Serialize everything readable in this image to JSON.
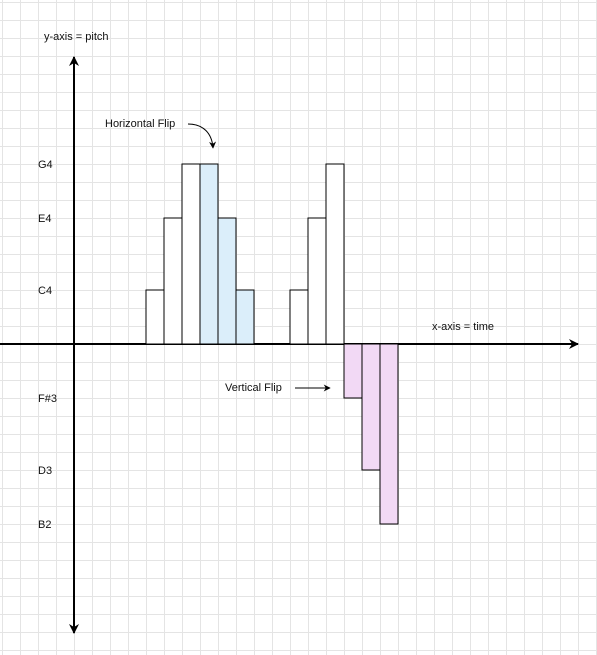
{
  "axes": {
    "y_label": "y-axis = pitch",
    "x_label": "x-axis = time",
    "pitch_labels": [
      "G4",
      "E4",
      "C4",
      "F#3",
      "D3",
      "B2"
    ]
  },
  "annotations": {
    "horizontal_flip": "Horizontal Flip",
    "vertical_flip": "Vertical Flip"
  },
  "colors": {
    "horizontal_flip_fill": "#dbeefa",
    "vertical_flip_fill": "#f2d9f5",
    "outline": "#000000"
  },
  "notes": {
    "original": [
      "C4",
      "E4",
      "G4"
    ],
    "horizontal_flip": [
      "G4",
      "E4",
      "C4"
    ],
    "second_motif": [
      "C4",
      "E4",
      "G4"
    ],
    "vertical_flip": [
      "F#3",
      "D3",
      "B2"
    ]
  }
}
